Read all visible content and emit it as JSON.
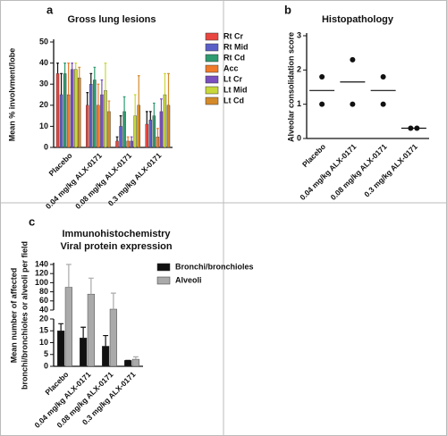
{
  "chart_data": [
    {
      "type": "bar",
      "panel_label": "a",
      "title": "Gross lung lesions",
      "ylabel": [
        "Mean % involvment/lobe"
      ],
      "categories": [
        "Placebo",
        "0.04 mg/kg ALX-0171",
        "0.08 mg/kg ALX-0171",
        "0.3 mg/kg ALX-0171"
      ],
      "series": [
        {
          "name": "Rt Cr",
          "color": "#e8463f",
          "values": [
            35,
            20,
            3,
            11
          ],
          "errors": [
            5,
            6,
            2,
            6
          ]
        },
        {
          "name": "Rt Mid",
          "color": "#5a5fc8",
          "values": [
            25,
            30,
            10,
            13
          ],
          "errors": [
            10,
            5,
            5,
            4
          ]
        },
        {
          "name": "Rt Cd",
          "color": "#2e9a6f",
          "values": [
            35,
            32,
            17,
            15
          ],
          "errors": [
            5,
            6,
            7,
            6
          ]
        },
        {
          "name": "Acc",
          "color": "#f07a2a",
          "values": [
            25,
            20,
            3,
            5
          ],
          "errors": [
            15,
            10,
            2,
            4
          ]
        },
        {
          "name": "Lt Cr",
          "color": "#7a4fbf",
          "values": [
            37,
            25,
            3,
            17
          ],
          "errors": [
            3,
            7,
            2,
            6
          ]
        },
        {
          "name": "Lt Mid",
          "color": "#c8d83a",
          "values": [
            37,
            27,
            15,
            25
          ],
          "errors": [
            3,
            13,
            10,
            10
          ]
        },
        {
          "name": "Lt Cd",
          "color": "#d58a2a",
          "values": [
            33,
            17,
            20,
            20
          ],
          "errors": [
            5,
            5,
            14,
            15
          ]
        }
      ],
      "ylim": [
        0,
        50
      ],
      "yticks": [
        0,
        10,
        20,
        30,
        40,
        50
      ]
    },
    {
      "type": "dot",
      "panel_label": "b",
      "title": "Histopathology",
      "ylabel": [
        "Alveolar consolidation score"
      ],
      "categories": [
        "Placebo",
        "0.04 mg/kg ALX-0171",
        "0.08 mg/kg ALX-0171",
        "0.3 mg/kg ALX-0171"
      ],
      "values": [
        [
          1.8,
          1
        ],
        [
          2.3,
          1
        ],
        [
          1.8,
          1
        ],
        [
          0.3,
          0.3
        ]
      ],
      "means": [
        1.4,
        1.65,
        1.4,
        0.3
      ],
      "color": "#111111",
      "ylim": [
        0,
        3
      ],
      "yticks": [
        0,
        1,
        2,
        3
      ]
    },
    {
      "type": "bar",
      "panel_label": "c",
      "title": [
        "Immunohistochemistry",
        "Viral protein expression"
      ],
      "ylabel": [
        "Mean number of affected",
        "bronchi/bronchioles or alveoli per field"
      ],
      "categories": [
        "Placebo",
        "0.04 mg/kg ALX-0171",
        "0.08 mg/kg ALX-0171",
        "0.3 mg/kg ALX-0171"
      ],
      "series": [
        {
          "name": "Bronchi/bronchioles",
          "color": "#111111",
          "values": [
            15,
            12,
            8.5,
            2.5
          ],
          "errors": [
            3,
            4.5,
            4.5,
            0
          ]
        },
        {
          "name": "Alveoli",
          "color": "#aaaaaa",
          "values": [
            90,
            75,
            42,
            3
          ],
          "errors": [
            50,
            35,
            35,
            1
          ]
        }
      ],
      "ylim": [
        0,
        140
      ],
      "y_break": [
        20,
        40
      ],
      "yticks": [
        0,
        5,
        10,
        15,
        20,
        40,
        60,
        80,
        100,
        120,
        140
      ]
    }
  ]
}
